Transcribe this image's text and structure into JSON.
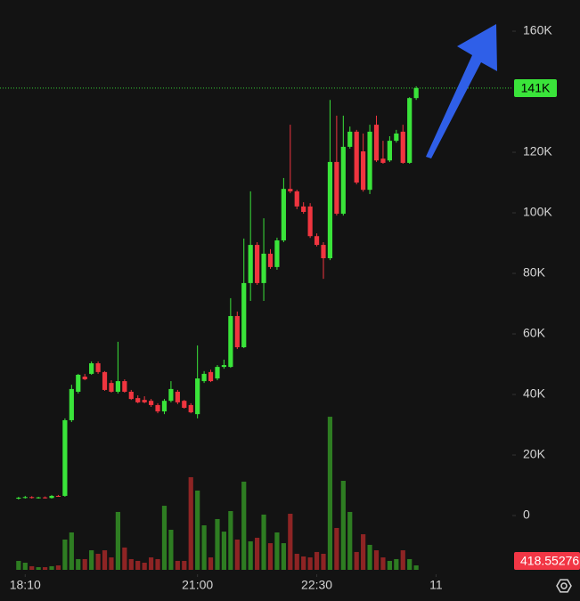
{
  "chart_data": {
    "type": "candlestick",
    "up_color": "#3ae43a",
    "down_color": "#f0353f",
    "volume_up_color": "#2e7d22",
    "volume_down_color": "#8e2424",
    "grid": false,
    "ylim": [
      -19400,
      170300
    ],
    "yticks": [
      0,
      {
        "value": 20000,
        "label": "20K"
      },
      {
        "value": 40000,
        "label": "40K"
      },
      {
        "value": 60000,
        "label": "60K"
      },
      {
        "value": 80000,
        "label": "80K"
      },
      {
        "value": 100000,
        "label": "100K"
      },
      {
        "value": 120000,
        "label": "120K"
      },
      {
        "value": 160000,
        "label": "160K"
      }
    ],
    "xlim": [
      -2.8,
      74.5
    ],
    "xticks": [
      {
        "value": 1,
        "label": "18:10"
      },
      {
        "value": 27,
        "label": "21:00"
      },
      {
        "value": 45,
        "label": "22:30"
      },
      {
        "value": 63,
        "label": "11"
      }
    ],
    "vlim": [
      0,
      15000
    ],
    "last_label": "141K",
    "open": [
      5600,
      5900,
      6100,
      5800,
      6000,
      5800,
      6500,
      6500,
      31500,
      40900,
      45900,
      46800,
      50300,
      47400,
      43800,
      40900,
      44400,
      40900,
      38800,
      38200,
      37900,
      36500,
      34400,
      37900,
      40900,
      37900,
      36500,
      33500,
      44400,
      47400,
      45300,
      49100,
      49100,
      65900,
      55600,
      76800,
      89400,
      76800,
      86500,
      82100,
      90900,
      107900,
      107100,
      102100,
      102100,
      92300,
      89400,
      85000,
      116800,
      99700,
      121800,
      126800,
      120300,
      107600,
      129100,
      117900,
      117300,
      123800,
      126800,
      116500,
      137900
    ],
    "high": [
      6200,
      6500,
      6400,
      6200,
      6300,
      6800,
      6800,
      32100,
      43200,
      46800,
      46800,
      50900,
      50900,
      47700,
      44700,
      57400,
      45000,
      41500,
      39700,
      39400,
      38500,
      37100,
      38500,
      44400,
      41500,
      38200,
      37100,
      56200,
      47700,
      48200,
      49700,
      51500,
      71800,
      67400,
      91500,
      107100,
      90300,
      98200,
      88000,
      91800,
      111500,
      129100,
      107600,
      103500,
      103200,
      93200,
      90300,
      137300,
      132100,
      132100,
      128500,
      127400,
      126200,
      129100,
      132100,
      123800,
      125300,
      127400,
      129100,
      138200,
      141800
    ],
    "low": [
      5300,
      5600,
      5600,
      5600,
      5600,
      5600,
      6200,
      6200,
      30900,
      40300,
      44700,
      46500,
      46800,
      41200,
      40600,
      40300,
      40600,
      38200,
      37100,
      37100,
      35900,
      33800,
      33500,
      37400,
      36800,
      35300,
      33800,
      32100,
      43800,
      44100,
      44700,
      48500,
      48800,
      55000,
      55300,
      70900,
      76200,
      70900,
      81500,
      81200,
      90300,
      106500,
      101200,
      99700,
      91700,
      88900,
      78200,
      84400,
      99100,
      99100,
      121200,
      109400,
      107000,
      106200,
      116800,
      116200,
      116800,
      123200,
      116200,
      116200,
      137300
    ],
    "close": [
      5900,
      6100,
      5800,
      6000,
      5800,
      6500,
      6200,
      31500,
      41800,
      46500,
      45000,
      50300,
      47400,
      41500,
      40900,
      44400,
      40900,
      38500,
      37400,
      37400,
      36500,
      34400,
      37900,
      41800,
      37400,
      35600,
      34100,
      45300,
      46800,
      44400,
      49100,
      49700,
      65900,
      55600,
      76800,
      89400,
      76800,
      86500,
      82100,
      90900,
      107900,
      107100,
      102100,
      100300,
      92300,
      89400,
      85000,
      116800,
      99700,
      121800,
      126800,
      110000,
      107600,
      126800,
      117300,
      116500,
      123800,
      126200,
      116500,
      137900,
      141200
    ],
    "volume": [
      840,
      670,
      340,
      250,
      250,
      340,
      420,
      2850,
      3520,
      1010,
      1010,
      1840,
      1510,
      1840,
      1170,
      5450,
      2100,
      1010,
      840,
      670,
      1170,
      1010,
      6030,
      3770,
      840,
      840,
      8720,
      7460,
      4190,
      1170,
      4780,
      3600,
      5530,
      2850,
      8300,
      2680,
      3020,
      5200,
      2510,
      3520,
      2510,
      5280,
      1510,
      1260,
      1170,
      1680,
      1510,
      14410,
      3940,
      8380,
      5450,
      1680,
      3350,
      2350,
      1840,
      1170,
      840,
      1010,
      1840,
      1010,
      418.55276
    ]
  }
}
